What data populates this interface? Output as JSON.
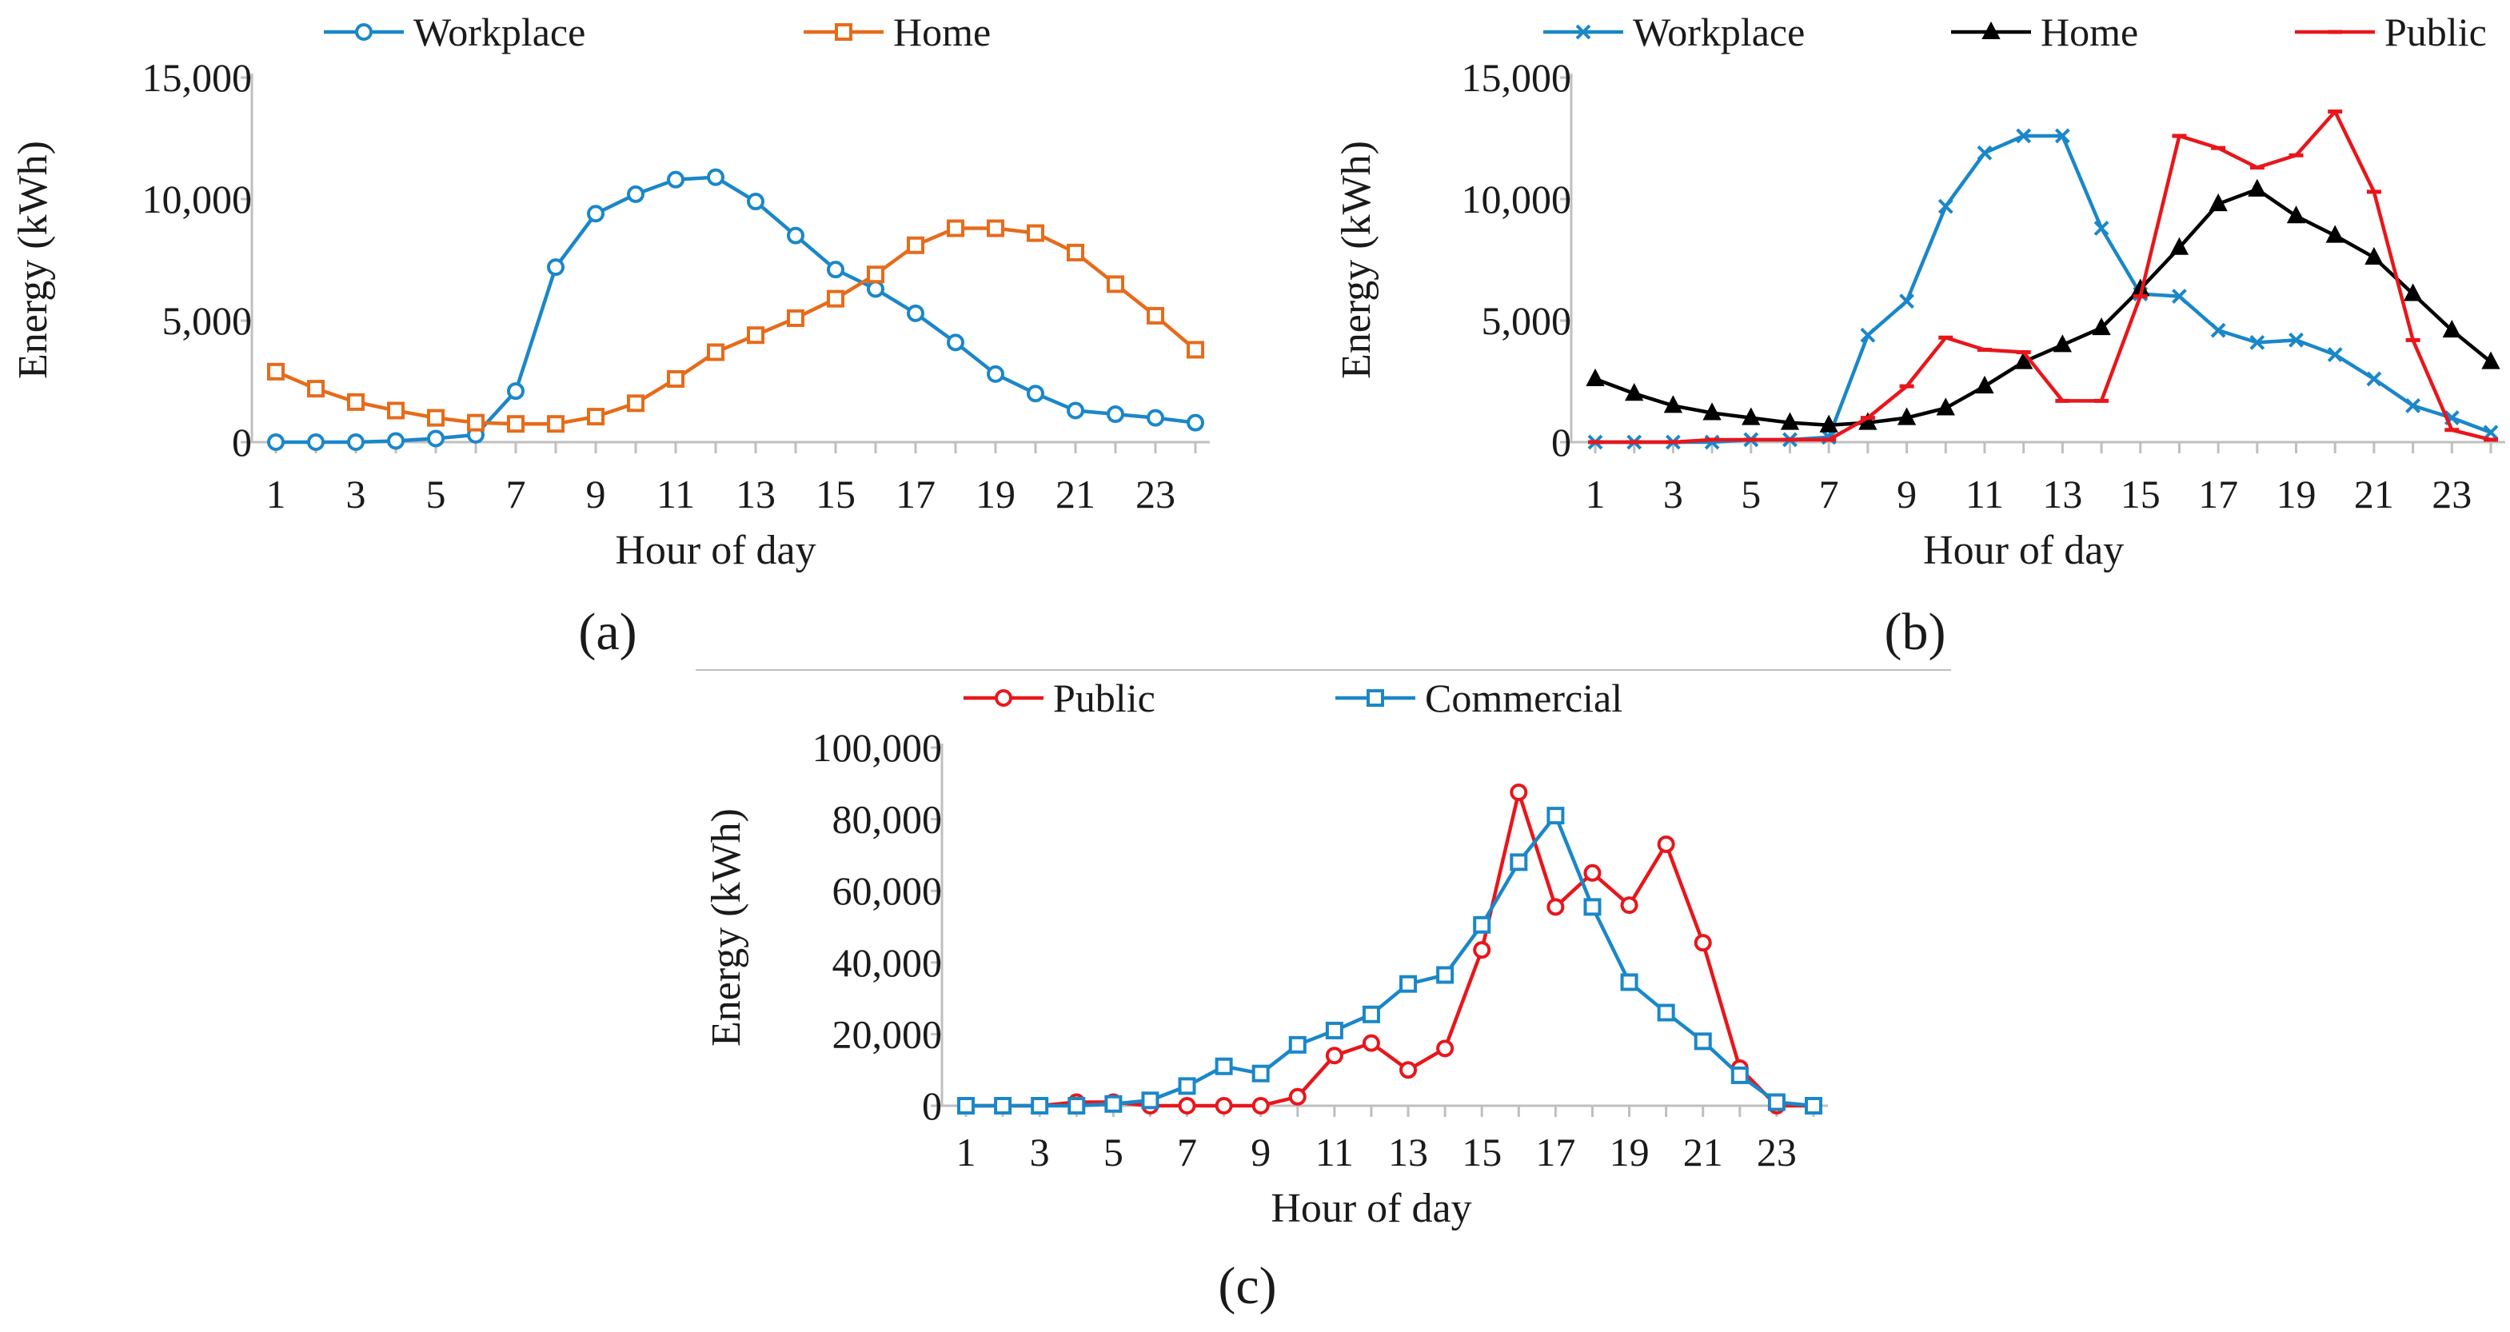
{
  "colors": {
    "blue": "#1a87c9",
    "orange": "#e66b1a",
    "black": "#000000",
    "red": "#e8161b"
  },
  "chart_data": [
    {
      "id": "a",
      "type": "line",
      "panel_label": "(a)",
      "xlabel": "Hour of day",
      "ylabel": "Energy (kWh)",
      "ylim": [
        0,
        15000
      ],
      "yticks": [
        0,
        5000,
        10000,
        15000
      ],
      "ytick_labels": [
        "0",
        "5,000",
        "10,000",
        "15,000"
      ],
      "xlim": [
        1,
        24
      ],
      "xticks": [
        1,
        3,
        5,
        7,
        9,
        11,
        13,
        15,
        17,
        19,
        21,
        23
      ],
      "xtick_labels": [
        "1",
        "3",
        "5",
        "7",
        "9",
        "11",
        "13",
        "15",
        "17",
        "19",
        "21",
        "23"
      ],
      "x": [
        1,
        2,
        3,
        4,
        5,
        6,
        7,
        8,
        9,
        10,
        11,
        12,
        13,
        14,
        15,
        16,
        17,
        18,
        19,
        20,
        21,
        22,
        23,
        24
      ],
      "series": [
        {
          "name": "Workplace",
          "color": "blue",
          "marker": "circle",
          "values": [
            0,
            0,
            0,
            50,
            150,
            300,
            2100,
            7200,
            9400,
            10200,
            10800,
            10900,
            9900,
            8500,
            7100,
            6300,
            5300,
            4100,
            2800,
            2000,
            1300,
            1150,
            1000,
            800
          ]
        },
        {
          "name": "Home",
          "color": "orange",
          "marker": "square",
          "values": [
            2900,
            2200,
            1650,
            1300,
            1000,
            800,
            750,
            750,
            1050,
            1600,
            2600,
            3700,
            4400,
            5100,
            5900,
            6900,
            8100,
            8800,
            8800,
            8600,
            7800,
            6500,
            5200,
            3800
          ]
        }
      ]
    },
    {
      "id": "b",
      "type": "line",
      "panel_label": "(b)",
      "xlabel": "Hour of day",
      "ylabel": "Energy (kWh)",
      "ylim": [
        0,
        15000
      ],
      "yticks": [
        0,
        5000,
        10000,
        15000
      ],
      "ytick_labels": [
        "0",
        "5,000",
        "10,000",
        "15,000"
      ],
      "xlim": [
        1,
        24
      ],
      "xticks": [
        1,
        3,
        5,
        7,
        9,
        11,
        13,
        15,
        17,
        19,
        21,
        23
      ],
      "xtick_labels": [
        "1",
        "3",
        "5",
        "7",
        "9",
        "11",
        "13",
        "15",
        "17",
        "19",
        "21",
        "23"
      ],
      "x": [
        1,
        2,
        3,
        4,
        5,
        6,
        7,
        8,
        9,
        10,
        11,
        12,
        13,
        14,
        15,
        16,
        17,
        18,
        19,
        20,
        21,
        22,
        23,
        24
      ],
      "series": [
        {
          "name": "Workplace",
          "color": "blue",
          "marker": "x",
          "values": [
            0,
            0,
            0,
            0,
            100,
            100,
            200,
            4400,
            5800,
            9700,
            11900,
            12600,
            12600,
            8800,
            6100,
            6000,
            4600,
            4100,
            4200,
            3600,
            2600,
            1500,
            1000,
            400
          ]
        },
        {
          "name": "Home",
          "color": "black",
          "marker": "triangle",
          "values": [
            2600,
            2000,
            1500,
            1200,
            1000,
            800,
            700,
            800,
            1000,
            1400,
            2300,
            3300,
            4000,
            4700,
            6300,
            8000,
            9800,
            10400,
            9300,
            8500,
            7600,
            6100,
            4600,
            3300
          ]
        },
        {
          "name": "Public",
          "color": "red",
          "marker": "dash",
          "values": [
            0,
            0,
            0,
            100,
            100,
            100,
            100,
            1000,
            2300,
            4300,
            3800,
            3700,
            1700,
            1700,
            6000,
            12600,
            12100,
            11300,
            11800,
            13600,
            10300,
            4200,
            500,
            100
          ]
        }
      ]
    },
    {
      "id": "c",
      "type": "line",
      "panel_label": "(c)",
      "xlabel": "Hour of day",
      "ylabel": "Energy (kWh)",
      "ylim": [
        0,
        100000
      ],
      "yticks": [
        0,
        20000,
        40000,
        60000,
        80000,
        100000
      ],
      "ytick_labels": [
        "0",
        "20,000",
        "40,000",
        "60,000",
        "80,000",
        "100,000"
      ],
      "xlim": [
        1,
        24
      ],
      "xticks": [
        1,
        3,
        5,
        7,
        9,
        11,
        13,
        15,
        17,
        19,
        21,
        23
      ],
      "xtick_labels": [
        "1",
        "3",
        "5",
        "7",
        "9",
        "11",
        "13",
        "15",
        "17",
        "19",
        "21",
        "23"
      ],
      "x": [
        1,
        2,
        3,
        4,
        5,
        6,
        7,
        8,
        9,
        10,
        11,
        12,
        13,
        14,
        15,
        16,
        17,
        18,
        19,
        20,
        21,
        22,
        23,
        24
      ],
      "series": [
        {
          "name": "Public",
          "color": "red",
          "marker": "circle",
          "values": [
            0,
            0,
            0,
            1000,
            1000,
            0,
            0,
            0,
            0,
            2500,
            14000,
            17500,
            10000,
            16000,
            43500,
            87500,
            55500,
            65000,
            56000,
            73000,
            45500,
            10500,
            0,
            0
          ]
        },
        {
          "name": "Commercial",
          "color": "blue",
          "marker": "square",
          "values": [
            0,
            0,
            0,
            0,
            500,
            1500,
            5500,
            11000,
            9000,
            17000,
            21000,
            25500,
            34000,
            36500,
            50500,
            68000,
            81000,
            55500,
            34500,
            26000,
            18000,
            8500,
            1000,
            0
          ]
        }
      ]
    }
  ]
}
